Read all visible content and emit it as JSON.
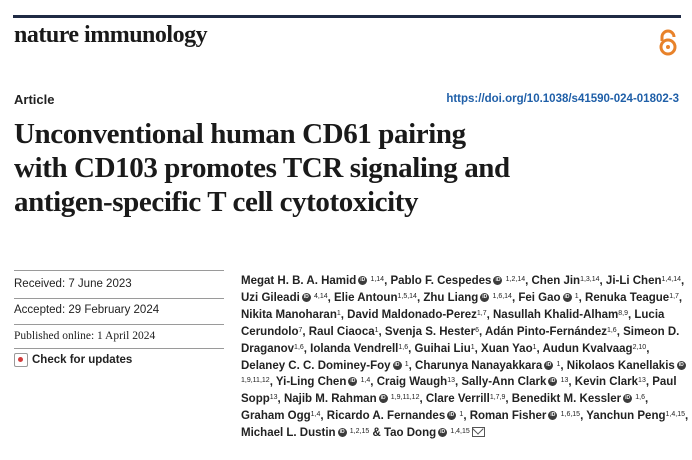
{
  "journal": {
    "name": "nature immunology"
  },
  "header": {
    "article_type": "Article",
    "doi": "https://doi.org/10.1038/s41590-024-01802-3"
  },
  "title_lines": [
    "Unconventional human CD61 pairing",
    "with CD103 promotes TCR signaling and",
    "antigen-specific T cell cytotoxicity"
  ],
  "dates": {
    "received": "Received: 7 June 2023",
    "accepted": "Accepted: 29 February 2024",
    "published": "Published online: 1 April 2024"
  },
  "check_updates": "Check for updates",
  "icons": {
    "open_access": "open-access-lock-icon",
    "orcid": "orcid-icon",
    "email": "envelope-icon",
    "updates": "crossmark-icon"
  },
  "colors": {
    "accent_orange": "#e8822a",
    "link_blue": "#1f5fa8",
    "bar": "#1f2a44"
  },
  "authors": [
    {
      "name": "Megat H. B. A. Hamid",
      "orcid": true,
      "aff": "1,14"
    },
    {
      "name": "Pablo F. Cespedes",
      "orcid": true,
      "aff": "1,2,14"
    },
    {
      "name": "Chen Jin",
      "orcid": false,
      "aff": "1,3,14"
    },
    {
      "name": "Ji-Li Chen",
      "orcid": false,
      "aff": "1,4,14"
    },
    {
      "name": "Uzi Gileadi",
      "orcid": true,
      "aff": "4,14"
    },
    {
      "name": "Elie Antoun",
      "orcid": false,
      "aff": "1,5,14"
    },
    {
      "name": "Zhu Liang",
      "orcid": true,
      "aff": "1,6,14"
    },
    {
      "name": "Fei Gao",
      "orcid": true,
      "aff": "1"
    },
    {
      "name": "Renuka Teague",
      "orcid": false,
      "aff": "1,7"
    },
    {
      "name": "Nikita Manoharan",
      "orcid": false,
      "aff": "1"
    },
    {
      "name": "David Maldonado-Perez",
      "orcid": false,
      "aff": "1,7"
    },
    {
      "name": "Nasullah Khalid-Alham",
      "orcid": false,
      "aff": "8,9"
    },
    {
      "name": "Lucia Cerundolo",
      "orcid": false,
      "aff": "7"
    },
    {
      "name": "Raul Ciaoca",
      "orcid": false,
      "aff": "1"
    },
    {
      "name": "Svenja S. Hester",
      "orcid": false,
      "aff": "6"
    },
    {
      "name": "Adán Pinto-Fernández",
      "orcid": false,
      "aff": "1,6"
    },
    {
      "name": "Simeon D. Draganov",
      "orcid": false,
      "aff": "1,6"
    },
    {
      "name": "Iolanda Vendrell",
      "orcid": false,
      "aff": "1,6"
    },
    {
      "name": "Guihai Liu",
      "orcid": false,
      "aff": "1"
    },
    {
      "name": "Xuan Yao",
      "orcid": false,
      "aff": "1"
    },
    {
      "name": "Audun Kvalvaag",
      "orcid": false,
      "aff": "2,10"
    },
    {
      "name": "Delaney C. C. Dominey-Foy",
      "orcid": true,
      "aff": "1"
    },
    {
      "name": "Charunya Nanayakkara",
      "orcid": true,
      "aff": "1"
    },
    {
      "name": "Nikolaos Kanellakis",
      "orcid": true,
      "aff": "1,9,11,12"
    },
    {
      "name": "Yi-Ling Chen",
      "orcid": true,
      "aff": "1,4"
    },
    {
      "name": "Craig Waugh",
      "orcid": false,
      "aff": "13"
    },
    {
      "name": "Sally-Ann Clark",
      "orcid": true,
      "aff": "13"
    },
    {
      "name": "Kevin Clark",
      "orcid": false,
      "aff": "13"
    },
    {
      "name": "Paul Sopp",
      "orcid": false,
      "aff": "13"
    },
    {
      "name": "Najib M. Rahman",
      "orcid": true,
      "aff": "1,9,11,12"
    },
    {
      "name": "Clare Verrill",
      "orcid": false,
      "aff": "1,7,9"
    },
    {
      "name": "Benedikt M. Kessler",
      "orcid": true,
      "aff": "1,6"
    },
    {
      "name": "Graham Ogg",
      "orcid": false,
      "aff": "1,4"
    },
    {
      "name": "Ricardo A. Fernandes",
      "orcid": true,
      "aff": "1"
    },
    {
      "name": "Roman Fisher",
      "orcid": true,
      "aff": "1,6,15"
    },
    {
      "name": "Yanchun Peng",
      "orcid": false,
      "aff": "1,4,15"
    },
    {
      "name": "Michael L. Dustin",
      "orcid": true,
      "aff": "1,2,15"
    },
    {
      "name": "Tao Dong",
      "orcid": true,
      "aff": "1,4,15",
      "email": true
    }
  ]
}
